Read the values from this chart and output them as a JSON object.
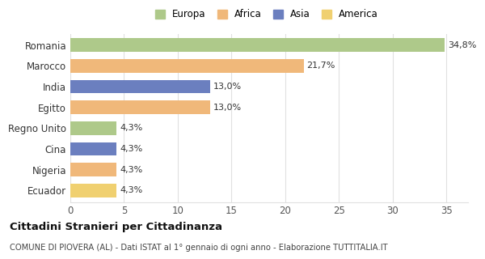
{
  "categories": [
    "Romania",
    "Marocco",
    "India",
    "Egitto",
    "Regno Unito",
    "Cina",
    "Nigeria",
    "Ecuador"
  ],
  "values": [
    34.8,
    21.7,
    13.0,
    13.0,
    4.3,
    4.3,
    4.3,
    4.3
  ],
  "labels": [
    "34,8%",
    "21,7%",
    "13,0%",
    "13,0%",
    "4,3%",
    "4,3%",
    "4,3%",
    "4,3%"
  ],
  "colors": [
    "#aec98a",
    "#f0b87a",
    "#6b7fbf",
    "#f0b87a",
    "#aec98a",
    "#6b7fbf",
    "#f0b87a",
    "#f0d070"
  ],
  "legend_labels": [
    "Europa",
    "Africa",
    "Asia",
    "America"
  ],
  "legend_colors": [
    "#aec98a",
    "#f0b87a",
    "#6b7fbf",
    "#f0d070"
  ],
  "xlim": [
    0,
    37
  ],
  "xticks": [
    0,
    5,
    10,
    15,
    20,
    25,
    30,
    35
  ],
  "title": "Cittadini Stranieri per Cittadinanza",
  "subtitle": "COMUNE DI PIOVERA (AL) - Dati ISTAT al 1° gennaio di ogni anno - Elaborazione TUTTITALIA.IT",
  "background_color": "#ffffff",
  "grid_color": "#e0e0e0"
}
